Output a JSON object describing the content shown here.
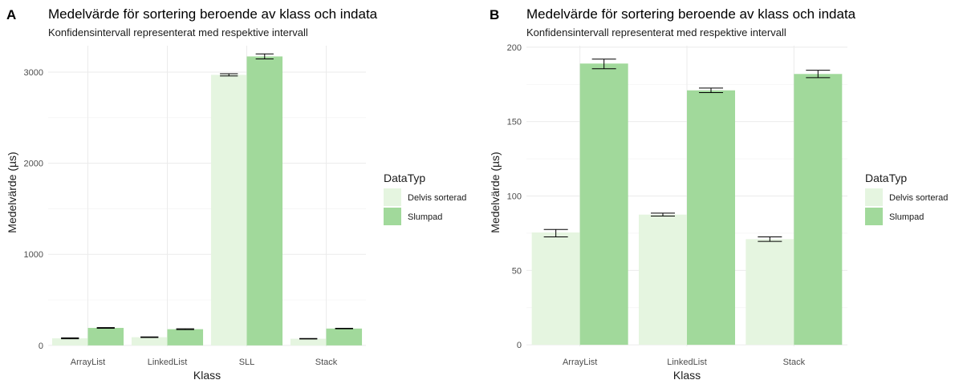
{
  "colors": {
    "Delvis sorterad": "#e5f5e0",
    "Slumpad": "#a1d99b"
  },
  "chart_data": [
    {
      "panel": "A",
      "type": "bar",
      "title": "Medelvärde för sortering beroende av klass och indata",
      "subtitle": "Konfidensintervall representerat med respektive intervall",
      "xlabel": "Klass",
      "ylabel": "Medelvärde (µs)",
      "ylim": [
        -10,
        3290
      ],
      "yticks": [
        0,
        1000,
        2000,
        3000
      ],
      "ytick_labels": [
        "0",
        "1000",
        "2000",
        "3000"
      ],
      "categories": [
        "ArrayList",
        "LinkedList",
        "SLL",
        "Stack"
      ],
      "legend_title": "DataTyp",
      "series": [
        {
          "name": "Delvis sorterad",
          "values": [
            78,
            90,
            2970,
            73
          ],
          "err_low": [
            73,
            87,
            2958,
            70
          ],
          "err_high": [
            82,
            93,
            2982,
            76
          ]
        },
        {
          "name": "Slumpad",
          "values": [
            192,
            178,
            3172,
            185
          ],
          "err_low": [
            188,
            174,
            3145,
            182
          ],
          "err_high": [
            196,
            182,
            3200,
            188
          ]
        }
      ]
    },
    {
      "panel": "B",
      "type": "bar",
      "title": "Medelvärde för sortering beroende av klass och indata",
      "subtitle": "Konfidensintervall representerat med respektive intervall",
      "xlabel": "Klass",
      "ylabel": "Medelvärde (µs)",
      "ylim": [
        -1,
        201
      ],
      "yticks": [
        0,
        50,
        100,
        150,
        200
      ],
      "ytick_labels": [
        "0",
        "50",
        "100",
        "150",
        "200"
      ],
      "categories": [
        "ArrayList",
        "LinkedList",
        "Stack"
      ],
      "legend_title": "DataTyp",
      "series": [
        {
          "name": "Delvis sorterad",
          "values": [
            75.5,
            87.5,
            71
          ],
          "err_low": [
            72.5,
            86.5,
            69.5
          ],
          "err_high": [
            77.5,
            88.5,
            72.5
          ]
        },
        {
          "name": "Slumpad",
          "values": [
            189,
            171,
            182
          ],
          "err_low": [
            185.5,
            169.5,
            179.5
          ],
          "err_high": [
            192,
            172.5,
            184.5
          ]
        }
      ]
    }
  ]
}
